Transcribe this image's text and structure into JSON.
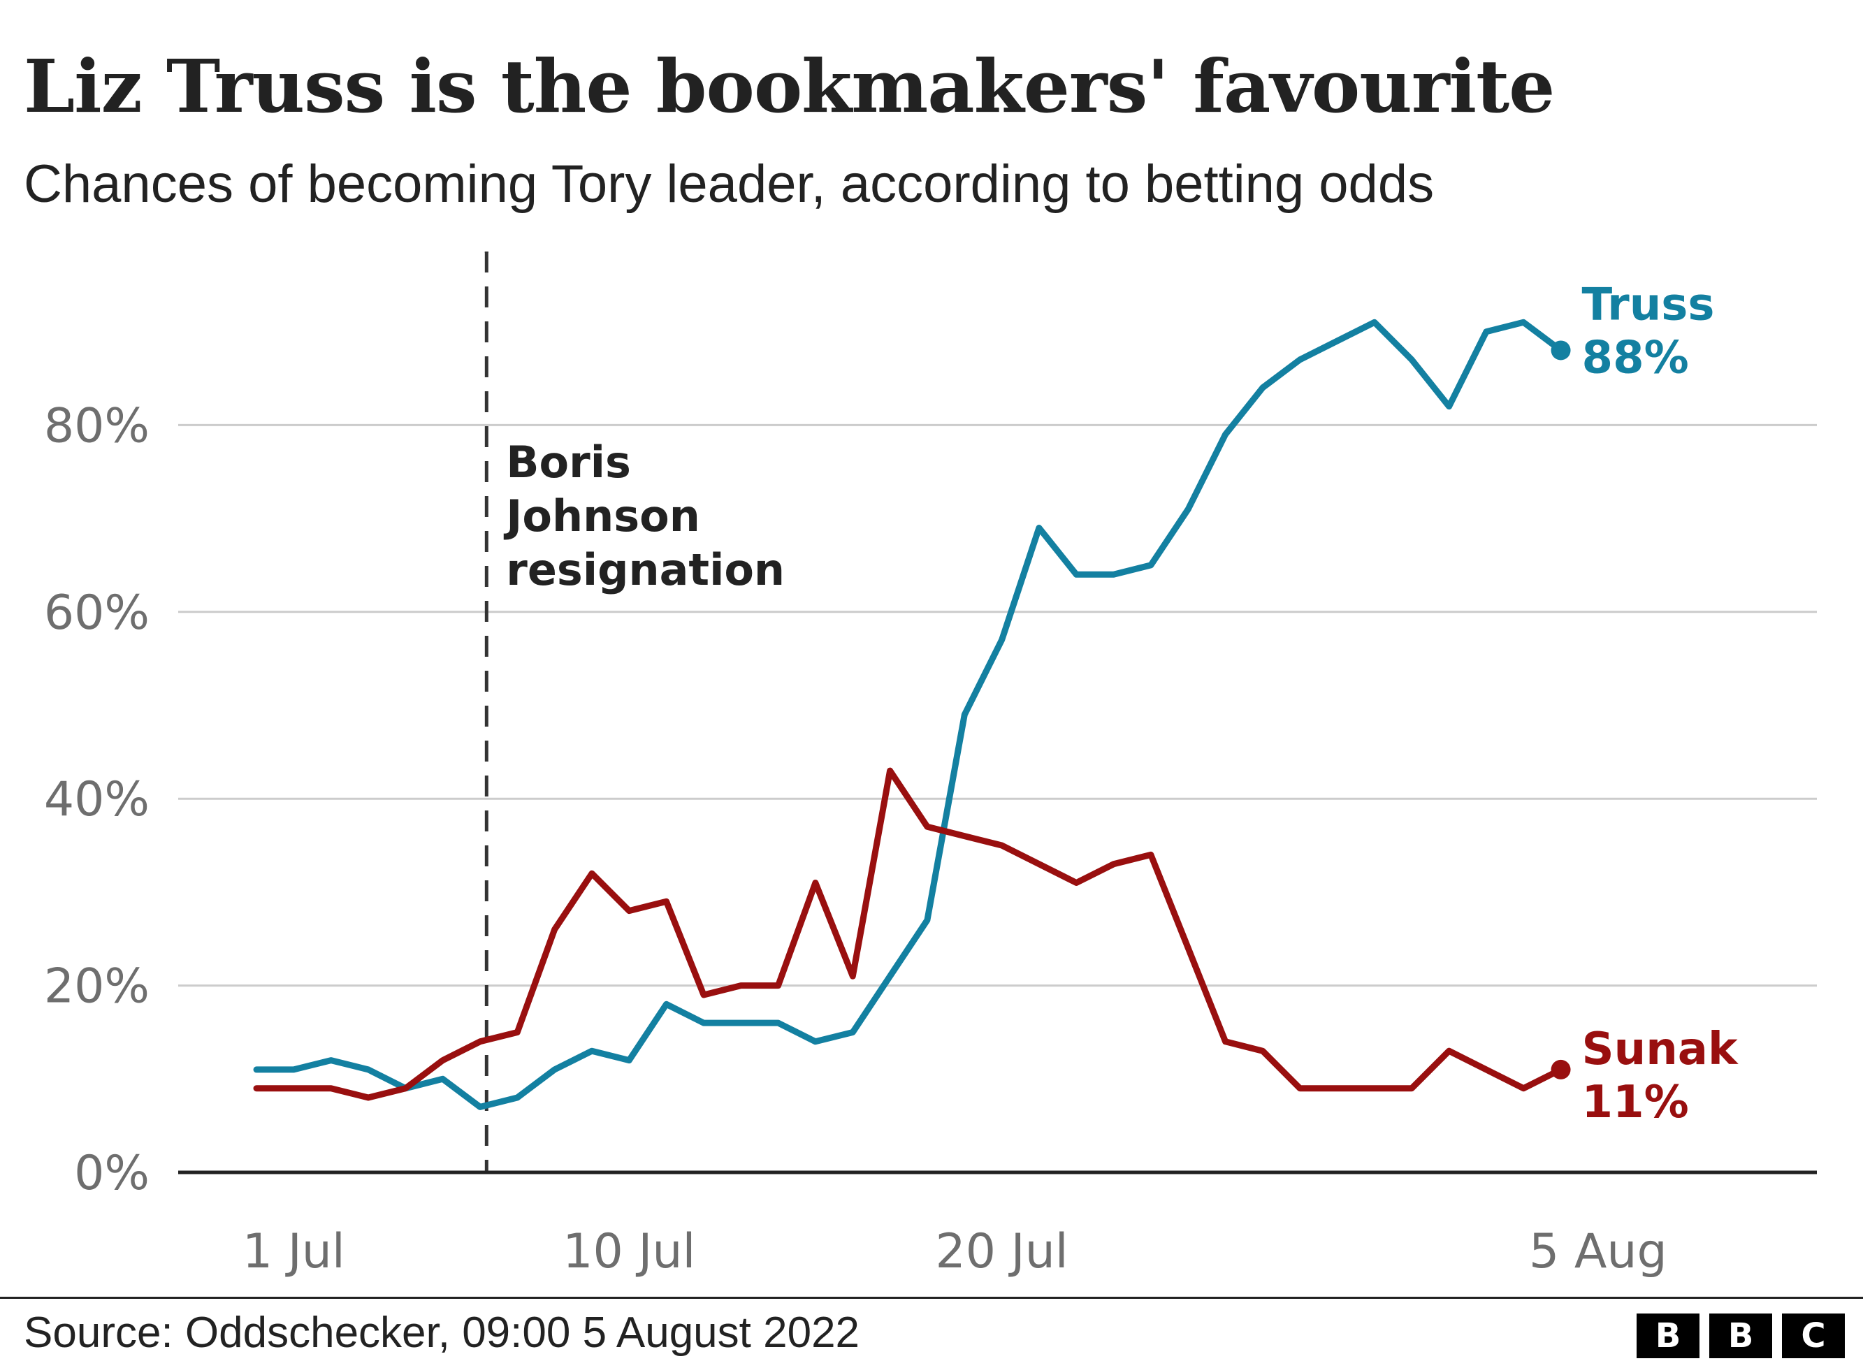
{
  "header": {
    "title": "Liz Truss is the bookmakers' favourite",
    "subtitle": "Chances of becoming Tory leader, according to betting odds"
  },
  "footer": {
    "source": "Source: Oddschecker, 09:00 5 August 2022",
    "logo_letters": [
      "B",
      "B",
      "C"
    ]
  },
  "chart_data": {
    "type": "line",
    "y_axis": {
      "min": 0,
      "max": 100,
      "ticks": [
        0,
        20,
        40,
        60,
        80
      ],
      "tick_labels": [
        "0%",
        "20%",
        "40%",
        "60%",
        "80%"
      ]
    },
    "x_axis": {
      "ticks": [
        "2022-07-01",
        "2022-07-10",
        "2022-07-20",
        "2022-08-05"
      ],
      "tick_labels": [
        "1 Jul",
        "10 Jul",
        "20 Jul",
        "5 Aug"
      ]
    },
    "annotation": {
      "date": "2022-07-07",
      "lines": [
        "Boris",
        "Johnson",
        "resignation"
      ]
    },
    "series": [
      {
        "name": "Truss",
        "end_label": "88%",
        "color": "#1380a1",
        "points": [
          [
            "2022-06-30",
            11
          ],
          [
            "2022-07-01",
            11
          ],
          [
            "2022-07-02",
            12
          ],
          [
            "2022-07-03",
            11
          ],
          [
            "2022-07-04",
            9
          ],
          [
            "2022-07-05",
            10
          ],
          [
            "2022-07-06",
            7
          ],
          [
            "2022-07-07",
            8
          ],
          [
            "2022-07-08",
            11
          ],
          [
            "2022-07-09",
            13
          ],
          [
            "2022-07-10",
            12
          ],
          [
            "2022-07-11",
            18
          ],
          [
            "2022-07-12",
            16
          ],
          [
            "2022-07-13",
            16
          ],
          [
            "2022-07-14",
            16
          ],
          [
            "2022-07-15",
            14
          ],
          [
            "2022-07-16",
            15
          ],
          [
            "2022-07-18",
            27
          ],
          [
            "2022-07-19",
            49
          ],
          [
            "2022-07-20",
            57
          ],
          [
            "2022-07-21",
            69
          ],
          [
            "2022-07-22",
            64
          ],
          [
            "2022-07-23",
            64
          ],
          [
            "2022-07-24",
            65
          ],
          [
            "2022-07-25",
            71
          ],
          [
            "2022-07-26",
            79
          ],
          [
            "2022-07-27",
            84
          ],
          [
            "2022-07-28",
            87
          ],
          [
            "2022-07-30",
            91
          ],
          [
            "2022-07-31",
            87
          ],
          [
            "2022-08-01",
            82
          ],
          [
            "2022-08-02",
            90
          ],
          [
            "2022-08-03",
            91
          ],
          [
            "2022-08-04",
            88
          ]
        ]
      },
      {
        "name": "Sunak",
        "end_label": "11%",
        "color": "#990f0f",
        "points": [
          [
            "2022-06-30",
            9
          ],
          [
            "2022-07-02",
            9
          ],
          [
            "2022-07-03",
            8
          ],
          [
            "2022-07-04",
            9
          ],
          [
            "2022-07-05",
            12
          ],
          [
            "2022-07-06",
            14
          ],
          [
            "2022-07-07",
            15
          ],
          [
            "2022-07-08",
            26
          ],
          [
            "2022-07-09",
            32
          ],
          [
            "2022-07-10",
            28
          ],
          [
            "2022-07-11",
            29
          ],
          [
            "2022-07-12",
            19
          ],
          [
            "2022-07-13",
            20
          ],
          [
            "2022-07-14",
            20
          ],
          [
            "2022-07-15",
            31
          ],
          [
            "2022-07-16",
            21
          ],
          [
            "2022-07-17",
            43
          ],
          [
            "2022-07-18",
            37
          ],
          [
            "2022-07-20",
            35
          ],
          [
            "2022-07-22",
            31
          ],
          [
            "2022-07-23",
            33
          ],
          [
            "2022-07-24",
            34
          ],
          [
            "2022-07-25",
            24
          ],
          [
            "2022-07-26",
            14
          ],
          [
            "2022-07-27",
            13
          ],
          [
            "2022-07-28",
            9
          ],
          [
            "2022-07-31",
            9
          ],
          [
            "2022-08-01",
            13
          ],
          [
            "2022-08-03",
            9
          ],
          [
            "2022-08-04",
            11
          ]
        ]
      }
    ],
    "grid": true,
    "legend": "direct labels at line ends"
  }
}
